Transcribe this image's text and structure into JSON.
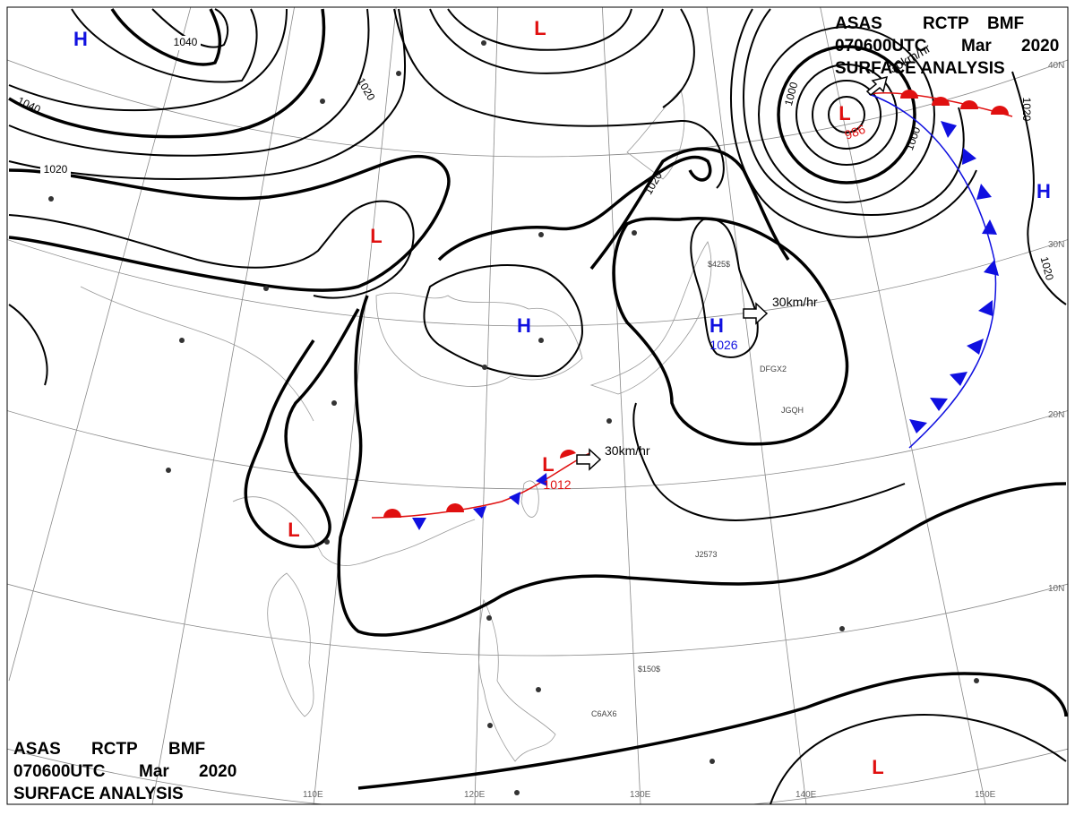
{
  "header_top": {
    "line1": [
      "ASAS",
      "RCTP",
      "BMF"
    ],
    "line2": [
      "070600UTC",
      "Mar",
      "2020"
    ],
    "line3": "SURFACE ANALYSIS"
  },
  "header_bottom": {
    "line1": [
      "ASAS",
      "RCTP",
      "BMF"
    ],
    "line2": [
      "070600UTC",
      "Mar",
      "2020"
    ],
    "line3": "SURFACE ANALYSIS"
  },
  "pressure_centers": [
    {
      "symbol": "H"
    },
    {
      "symbol": "L"
    },
    {
      "symbol": "L"
    },
    {
      "symbol": "H"
    },
    {
      "symbol": "H",
      "value": 1026
    },
    {
      "symbol": "L",
      "value": 986
    },
    {
      "symbol": "H"
    },
    {
      "symbol": "L",
      "value": 1012
    },
    {
      "symbol": "L"
    },
    {
      "symbol": "L"
    }
  ],
  "isobar_labels": [
    1040,
    1020,
    1040,
    1020,
    1020,
    1000,
    1000,
    1020,
    1020
  ],
  "motion_labels": [
    "30km/hr",
    "30km/hr",
    "30km/hr"
  ],
  "grid_labels": {
    "longitude": [
      "110E",
      "120E",
      "130E",
      "140E",
      "150E"
    ],
    "latitude": [
      "40N",
      "30N",
      "20N",
      "10N"
    ]
  },
  "station_ids": [
    "JGQH",
    "DFGX2",
    "C6AX6",
    "J2573",
    "$425$",
    "$150$"
  ]
}
